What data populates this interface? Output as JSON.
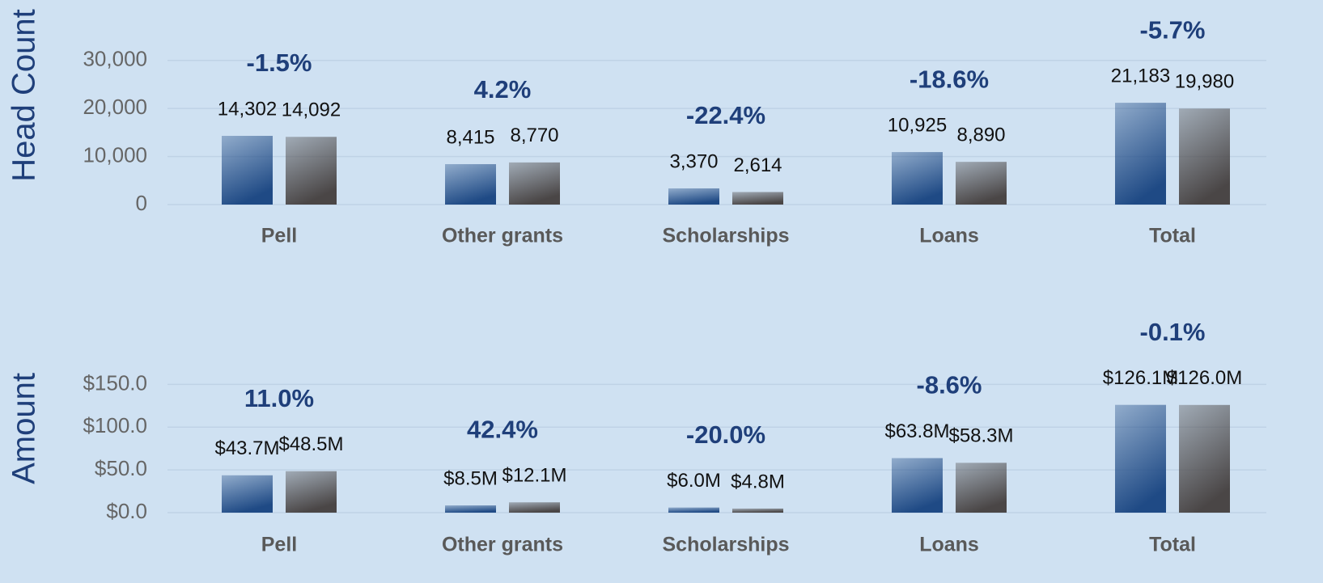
{
  "chart_data": [
    {
      "type": "bar",
      "y_axis_label": "Head Count",
      "categories": [
        "Pell",
        "Other grants",
        "Scholarships",
        "Loans",
        "Total"
      ],
      "series": [
        {
          "color": "#1f4a85",
          "values": [
            14302,
            8415,
            3370,
            10925,
            21183
          ],
          "value_labels": [
            "14,302",
            "8,415",
            "3,370",
            "10,925",
            "21,183"
          ]
        },
        {
          "color": "#4a4646",
          "values": [
            14092,
            8770,
            2614,
            8890,
            19980
          ],
          "value_labels": [
            "14,092",
            "8,770",
            "2,614",
            "8,890",
            "19,980"
          ]
        }
      ],
      "annotations": [
        "-1.5%",
        "4.2%",
        "-22.4%",
        "-18.6%",
        "-5.7%"
      ],
      "ylim": [
        0,
        35000
      ],
      "yticks": [
        0,
        {
          "value": 10000,
          "label": "10,000"
        },
        {
          "value": 20000,
          "label": "20,000"
        },
        {
          "value": 30000,
          "label": "30,000"
        }
      ],
      "grid": true
    },
    {
      "type": "bar",
      "y_axis_label": "Amount",
      "categories": [
        "Pell",
        "Other grants",
        "Scholarships",
        "Loans",
        "Total"
      ],
      "series": [
        {
          "color": "#1f4a85",
          "values": [
            43.7,
            8.5,
            6.0,
            63.8,
            126.1
          ],
          "value_labels": [
            "$43.7M",
            "$8.5M",
            "$6.0M",
            "$63.8M",
            "$126.1M"
          ]
        },
        {
          "color": "#4a4646",
          "values": [
            48.5,
            12.1,
            4.8,
            58.3,
            126.0
          ],
          "value_labels": [
            "$48.5M",
            "$12.1M",
            "$4.8M",
            "$58.3M",
            "$126.0M"
          ]
        }
      ],
      "annotations": [
        "11.0%",
        "42.4%",
        "-20.0%",
        "-8.6%",
        "-0.1%"
      ],
      "ylim": [
        0,
        175
      ],
      "yticks": [
        {
          "value": 0,
          "label": "$0.0"
        },
        {
          "value": 50,
          "label": "$50.0"
        },
        {
          "value": 100,
          "label": "$100.0"
        },
        {
          "value": 150,
          "label": "$150.0"
        }
      ],
      "grid": true
    }
  ]
}
